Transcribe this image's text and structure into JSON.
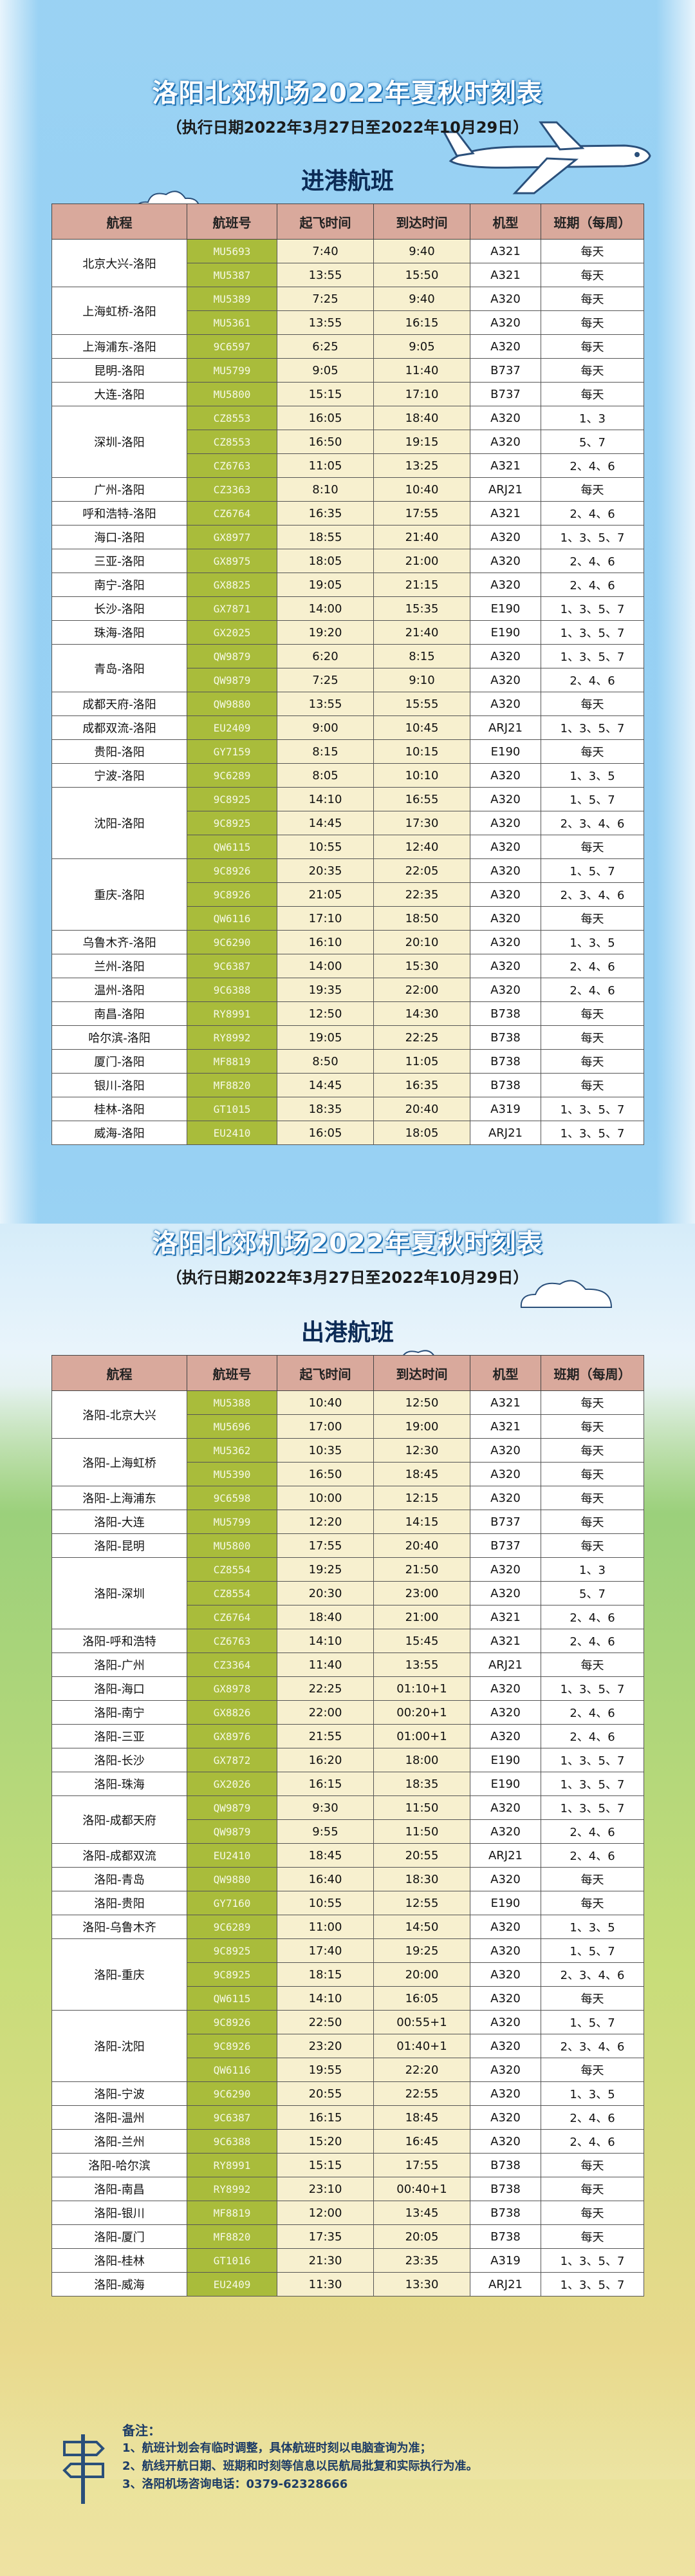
{
  "arrivals": {
    "title": "洛阳北郊机场2022年夏秋时刻表",
    "subtitle": "（执行日期2022年3月27日至2022年10月29日）",
    "section": "进港航班",
    "headers": [
      "航程",
      "航班号",
      "起飞时间",
      "到达时间",
      "机型",
      "班期（每周）"
    ],
    "groups": [
      {
        "route": "北京大兴-洛阳",
        "flights": [
          [
            "MU5693",
            "7:40",
            "9:40",
            "A321",
            "每天"
          ],
          [
            "MU5387",
            "13:55",
            "15:50",
            "A321",
            "每天"
          ]
        ]
      },
      {
        "route": "上海虹桥-洛阳",
        "flights": [
          [
            "MU5389",
            "7:25",
            "9:40",
            "A320",
            "每天"
          ],
          [
            "MU5361",
            "13:55",
            "16:15",
            "A320",
            "每天"
          ]
        ]
      },
      {
        "route": "上海浦东-洛阳",
        "flights": [
          [
            "9C6597",
            "6:25",
            "9:05",
            "A320",
            "每天"
          ]
        ]
      },
      {
        "route": "昆明-洛阳",
        "flights": [
          [
            "MU5799",
            "9:05",
            "11:40",
            "B737",
            "每天"
          ]
        ]
      },
      {
        "route": "大连-洛阳",
        "flights": [
          [
            "MU5800",
            "15:15",
            "17:10",
            "B737",
            "每天"
          ]
        ]
      },
      {
        "route": "深圳-洛阳",
        "flights": [
          [
            "CZ8553",
            "16:05",
            "18:40",
            "A320",
            "1、3"
          ],
          [
            "CZ8553",
            "16:50",
            "19:15",
            "A320",
            "5、7"
          ],
          [
            "CZ6763",
            "11:05",
            "13:25",
            "A321",
            "2、4、6"
          ]
        ]
      },
      {
        "route": "广州-洛阳",
        "flights": [
          [
            "CZ3363",
            "8:10",
            "10:40",
            "ARJ21",
            "每天"
          ]
        ]
      },
      {
        "route": "呼和浩特-洛阳",
        "flights": [
          [
            "CZ6764",
            "16:35",
            "17:55",
            "A321",
            "2、4、6"
          ]
        ]
      },
      {
        "route": "海口-洛阳",
        "flights": [
          [
            "GX8977",
            "18:55",
            "21:40",
            "A320",
            "1、3、5、7"
          ]
        ]
      },
      {
        "route": "三亚-洛阳",
        "flights": [
          [
            "GX8975",
            "18:05",
            "21:00",
            "A320",
            "2、4、6"
          ]
        ]
      },
      {
        "route": "南宁-洛阳",
        "flights": [
          [
            "GX8825",
            "19:05",
            "21:15",
            "A320",
            "2、4、6"
          ]
        ]
      },
      {
        "route": "长沙-洛阳",
        "flights": [
          [
            "GX7871",
            "14:00",
            "15:35",
            "E190",
            "1、3、5、7"
          ]
        ]
      },
      {
        "route": "珠海-洛阳",
        "flights": [
          [
            "GX2025",
            "19:20",
            "21:40",
            "E190",
            "1、3、5、7"
          ]
        ]
      },
      {
        "route": "青岛-洛阳",
        "flights": [
          [
            "QW9879",
            "6:20",
            "8:15",
            "A320",
            "1、3、5、7"
          ],
          [
            "QW9879",
            "7:25",
            "9:10",
            "A320",
            "2、4、6"
          ]
        ]
      },
      {
        "route": "成都天府-洛阳",
        "flights": [
          [
            "QW9880",
            "13:55",
            "15:55",
            "A320",
            "每天"
          ]
        ]
      },
      {
        "route": "成都双流-洛阳",
        "flights": [
          [
            "EU2409",
            "9:00",
            "10:45",
            "ARJ21",
            "1、3、5、7"
          ]
        ]
      },
      {
        "route": "贵阳-洛阳",
        "flights": [
          [
            "GY7159",
            "8:15",
            "10:15",
            "E190",
            "每天"
          ]
        ]
      },
      {
        "route": "宁波-洛阳",
        "flights": [
          [
            "9C6289",
            "8:05",
            "10:10",
            "A320",
            "1、3、5"
          ]
        ]
      },
      {
        "route": "沈阳-洛阳",
        "flights": [
          [
            "9C8925",
            "14:10",
            "16:55",
            "A320",
            "1、5、7"
          ],
          [
            "9C8925",
            "14:45",
            "17:30",
            "A320",
            "2、3、4、6"
          ],
          [
            "QW6115",
            "10:55",
            "12:40",
            "A320",
            "每天"
          ]
        ]
      },
      {
        "route": "重庆-洛阳",
        "flights": [
          [
            "9C8926",
            "20:35",
            "22:05",
            "A320",
            "1、5、7"
          ],
          [
            "9C8926",
            "21:05",
            "22:35",
            "A320",
            "2、3、4、6"
          ],
          [
            "QW6116",
            "17:10",
            "18:50",
            "A320",
            "每天"
          ]
        ]
      },
      {
        "route": "乌鲁木齐-洛阳",
        "flights": [
          [
            "9C6290",
            "16:10",
            "20:10",
            "A320",
            "1、3、5"
          ]
        ]
      },
      {
        "route": "兰州-洛阳",
        "flights": [
          [
            "9C6387",
            "14:00",
            "15:30",
            "A320",
            "2、4、6"
          ]
        ]
      },
      {
        "route": "温州-洛阳",
        "flights": [
          [
            "9C6388",
            "19:35",
            "22:00",
            "A320",
            "2、4、6"
          ]
        ]
      },
      {
        "route": "南昌-洛阳",
        "flights": [
          [
            "RY8991",
            "12:50",
            "14:30",
            "B738",
            "每天"
          ]
        ]
      },
      {
        "route": "哈尔滨-洛阳",
        "flights": [
          [
            "RY8992",
            "19:05",
            "22:25",
            "B738",
            "每天"
          ]
        ]
      },
      {
        "route": "厦门-洛阳",
        "flights": [
          [
            "MF8819",
            "8:50",
            "11:05",
            "B738",
            "每天"
          ]
        ]
      },
      {
        "route": "银川-洛阳",
        "flights": [
          [
            "MF8820",
            "14:45",
            "16:35",
            "B738",
            "每天"
          ]
        ]
      },
      {
        "route": "桂林-洛阳",
        "flights": [
          [
            "GT1015",
            "18:35",
            "20:40",
            "A319",
            "1、3、5、7"
          ]
        ]
      },
      {
        "route": "威海-洛阳",
        "flights": [
          [
            "EU2410",
            "16:05",
            "18:05",
            "ARJ21",
            "1、3、5、7"
          ]
        ]
      }
    ]
  },
  "departures": {
    "title": "洛阳北郊机场2022年夏秋时刻表",
    "subtitle": "（执行日期2022年3月27日至2022年10月29日）",
    "section": "出港航班",
    "headers": [
      "航程",
      "航班号",
      "起飞时间",
      "到达时间",
      "机型",
      "班期（每周）"
    ],
    "groups": [
      {
        "route": "洛阳-北京大兴",
        "flights": [
          [
            "MU5388",
            "10:40",
            "12:50",
            "A321",
            "每天"
          ],
          [
            "MU5696",
            "17:00",
            "19:00",
            "A321",
            "每天"
          ]
        ]
      },
      {
        "route": "洛阳-上海虹桥",
        "flights": [
          [
            "MU5362",
            "10:35",
            "12:30",
            "A320",
            "每天"
          ],
          [
            "MU5390",
            "16:50",
            "18:45",
            "A320",
            "每天"
          ]
        ]
      },
      {
        "route": "洛阳-上海浦东",
        "flights": [
          [
            "9C6598",
            "10:00",
            "12:15",
            "A320",
            "每天"
          ]
        ]
      },
      {
        "route": "洛阳-大连",
        "flights": [
          [
            "MU5799",
            "12:20",
            "14:15",
            "B737",
            "每天"
          ]
        ]
      },
      {
        "route": "洛阳-昆明",
        "flights": [
          [
            "MU5800",
            "17:55",
            "20:40",
            "B737",
            "每天"
          ]
        ]
      },
      {
        "route": "洛阳-深圳",
        "flights": [
          [
            "CZ8554",
            "19:25",
            "21:50",
            "A320",
            "1、3"
          ],
          [
            "CZ8554",
            "20:30",
            "23:00",
            "A320",
            "5、7"
          ],
          [
            "CZ6764",
            "18:40",
            "21:00",
            "A321",
            "2、4、6"
          ]
        ]
      },
      {
        "route": "洛阳-呼和浩特",
        "flights": [
          [
            "CZ6763",
            "14:10",
            "15:45",
            "A321",
            "2、4、6"
          ]
        ]
      },
      {
        "route": "洛阳-广州",
        "flights": [
          [
            "CZ3364",
            "11:40",
            "13:55",
            "ARJ21",
            "每天"
          ]
        ]
      },
      {
        "route": "洛阳-海口",
        "flights": [
          [
            "GX8978",
            "22:25",
            "01:10+1",
            "A320",
            "1、3、5、7"
          ]
        ]
      },
      {
        "route": "洛阳-南宁",
        "flights": [
          [
            "GX8826",
            "22:00",
            "00:20+1",
            "A320",
            "2、4、6"
          ]
        ]
      },
      {
        "route": "洛阳-三亚",
        "flights": [
          [
            "GX8976",
            "21:55",
            "01:00+1",
            "A320",
            "2、4、6"
          ]
        ]
      },
      {
        "route": "洛阳-长沙",
        "flights": [
          [
            "GX7872",
            "16:20",
            "18:00",
            "E190",
            "1、3、5、7"
          ]
        ]
      },
      {
        "route": "洛阳-珠海",
        "flights": [
          [
            "GX2026",
            "16:15",
            "18:35",
            "E190",
            "1、3、5、7"
          ]
        ]
      },
      {
        "route": "洛阳-成都天府",
        "flights": [
          [
            "QW9879",
            "9:30",
            "11:50",
            "A320",
            "1、3、5、7"
          ],
          [
            "QW9879",
            "9:55",
            "11:50",
            "A320",
            "2、4、6"
          ]
        ]
      },
      {
        "route": "洛阳-成都双流",
        "flights": [
          [
            "EU2410",
            "18:45",
            "20:55",
            "ARJ21",
            "2、4、6"
          ]
        ]
      },
      {
        "route": "洛阳-青岛",
        "flights": [
          [
            "QW9880",
            "16:40",
            "18:30",
            "A320",
            "每天"
          ]
        ]
      },
      {
        "route": "洛阳-贵阳",
        "flights": [
          [
            "GY7160",
            "10:55",
            "12:55",
            "E190",
            "每天"
          ]
        ]
      },
      {
        "route": "洛阳-乌鲁木齐",
        "flights": [
          [
            "9C6289",
            "11:00",
            "14:50",
            "A320",
            "1、3、5"
          ]
        ]
      },
      {
        "route": "洛阳-重庆",
        "flights": [
          [
            "9C8925",
            "17:40",
            "19:25",
            "A320",
            "1、5、7"
          ],
          [
            "9C8925",
            "18:15",
            "20:00",
            "A320",
            "2、3、4、6"
          ],
          [
            "QW6115",
            "14:10",
            "16:05",
            "A320",
            "每天"
          ]
        ]
      },
      {
        "route": "洛阳-沈阳",
        "flights": [
          [
            "9C8926",
            "22:50",
            "00:55+1",
            "A320",
            "1、5、7"
          ],
          [
            "9C8926",
            "23:20",
            "01:40+1",
            "A320",
            "2、3、4、6"
          ],
          [
            "QW6116",
            "19:55",
            "22:20",
            "A320",
            "每天"
          ]
        ]
      },
      {
        "route": "洛阳-宁波",
        "flights": [
          [
            "9C6290",
            "20:55",
            "22:55",
            "A320",
            "1、3、5"
          ]
        ]
      },
      {
        "route": "洛阳-温州",
        "flights": [
          [
            "9C6387",
            "16:15",
            "18:45",
            "A320",
            "2、4、6"
          ]
        ]
      },
      {
        "route": "洛阳-兰州",
        "flights": [
          [
            "9C6388",
            "15:20",
            "16:45",
            "A320",
            "2、4、6"
          ]
        ]
      },
      {
        "route": "洛阳-哈尔滨",
        "flights": [
          [
            "RY8991",
            "15:15",
            "17:55",
            "B738",
            "每天"
          ]
        ]
      },
      {
        "route": "洛阳-南昌",
        "flights": [
          [
            "RY8992",
            "23:10",
            "00:40+1",
            "B738",
            "每天"
          ]
        ]
      },
      {
        "route": "洛阳-银川",
        "flights": [
          [
            "MF8819",
            "12:00",
            "13:45",
            "B738",
            "每天"
          ]
        ]
      },
      {
        "route": "洛阳-厦门",
        "flights": [
          [
            "MF8820",
            "17:35",
            "20:05",
            "B738",
            "每天"
          ]
        ]
      },
      {
        "route": "洛阳-桂林",
        "flights": [
          [
            "GT1016",
            "21:30",
            "23:35",
            "A319",
            "1、3、5、7"
          ]
        ]
      },
      {
        "route": "洛阳-威海",
        "flights": [
          [
            "EU2409",
            "11:30",
            "13:30",
            "ARJ21",
            "1、3、5、7"
          ]
        ]
      }
    ]
  },
  "notes": {
    "heading": "备注：",
    "lines": [
      "1、航班计划会有临时调整，具体航班时刻以电脑查询为准；",
      "2、航线开航日期、班期和时刻等信息以民航局批复和实际执行为准。",
      "3、洛阳机场咨询电话：0379-62328666"
    ]
  },
  "colors": {
    "flight_cell": "#a9bc3b",
    "time_cell": "#f7f0cf",
    "header": "#d9a99c",
    "title_outline": "#1c6fb3"
  }
}
